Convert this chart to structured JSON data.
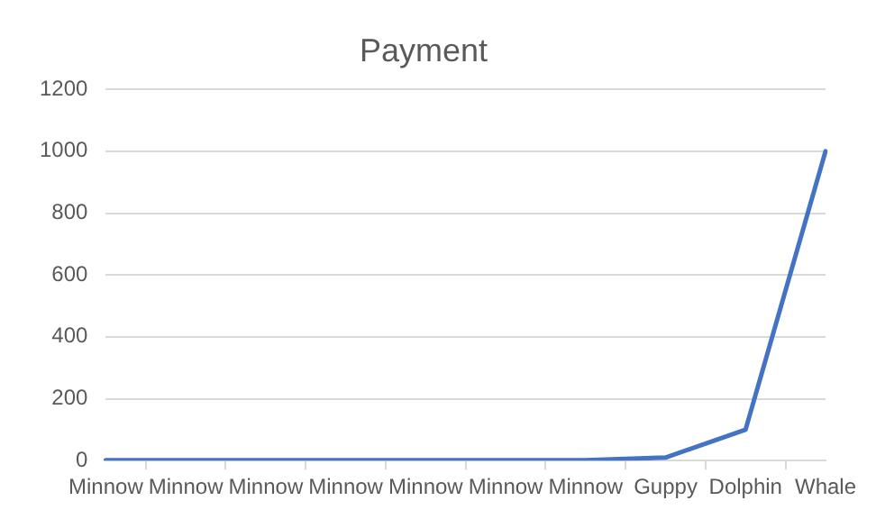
{
  "chart_data": {
    "type": "line",
    "title": "Payment",
    "categories": [
      "Minnow",
      "Minnow",
      "Minnow",
      "Minnow",
      "Minnow",
      "Minnow",
      "Minnow",
      "Guppy",
      "Dolphin",
      "Whale"
    ],
    "series": [
      {
        "color": "#4472c4",
        "values": [
          1,
          1,
          1,
          1,
          1,
          1,
          1,
          10,
          100,
          1000
        ]
      }
    ],
    "ylim": [
      0,
      1200
    ],
    "yticks": [
      0,
      200,
      400,
      600,
      800,
      1000,
      1200
    ],
    "grid": "y",
    "legend": false,
    "marker": "none",
    "line_style": "solid"
  }
}
